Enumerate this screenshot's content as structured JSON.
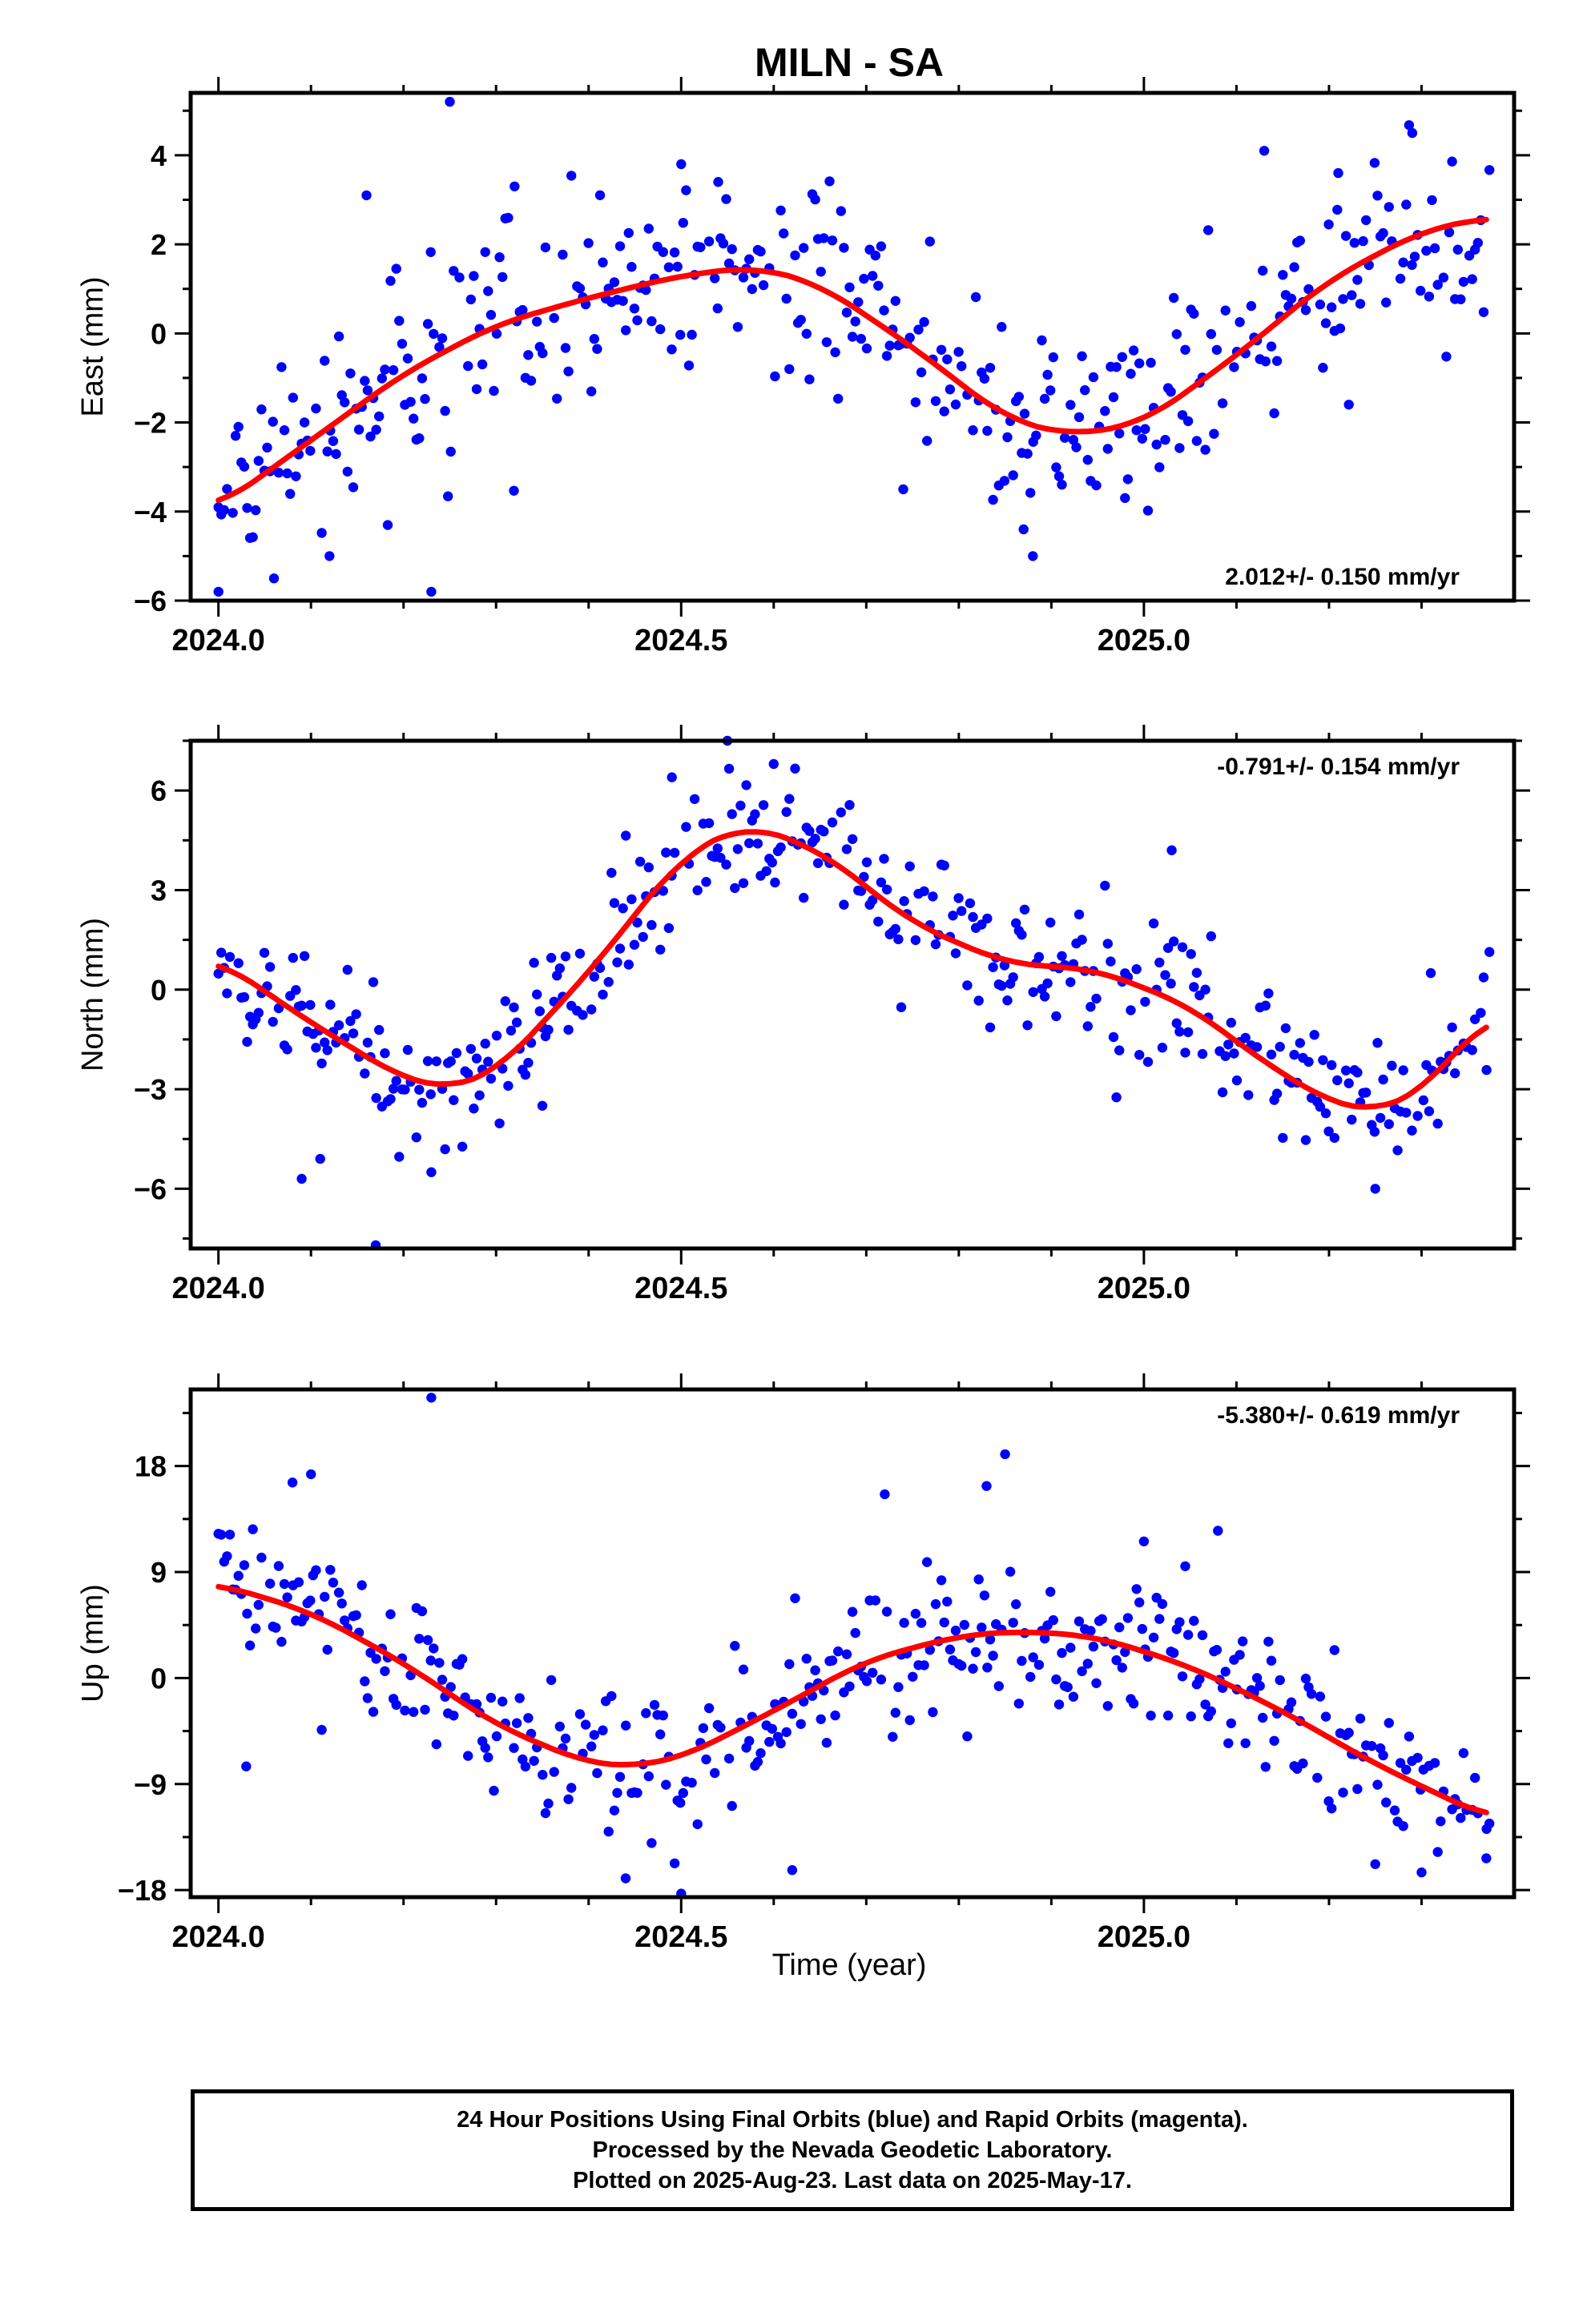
{
  "title": "MILN - SA",
  "xlabel": "Time (year)",
  "footer": {
    "line1": "24 Hour Positions Using Final Orbits (blue) and Rapid Orbits (magenta).",
    "line2": "Processed by the Nevada Geodetic Laboratory.",
    "line3": "Plotted on 2025-Aug-23. Last data on 2025-May-17."
  },
  "colors": {
    "points": "#0000ff",
    "fit": "#ff0000",
    "frame": "#000000"
  },
  "chart_data": [
    {
      "type": "scatter",
      "name": "east",
      "ylabel": "East (mm)",
      "rate_label": "2.012+/- 0.150 mm/yr",
      "rate_position": "bottom-right",
      "xlim": [
        2023.97,
        2025.4
      ],
      "ylim": [
        -6,
        5.4
      ],
      "x_ticks": [
        2024.0,
        2024.5,
        2025.0
      ],
      "x_tick_labels": [
        "2024.0",
        "2024.5",
        "2025.0"
      ],
      "y_ticks": [
        -6,
        -4,
        -2,
        0,
        2,
        4
      ],
      "y_tick_labels": [
        "−6",
        "−4",
        "−2",
        "0",
        "2",
        "4"
      ],
      "grid": false,
      "fit": {
        "x": [
          2024.0,
          2024.1,
          2024.2,
          2024.3,
          2024.4,
          2024.5,
          2024.58,
          2024.65,
          2024.75,
          2024.85,
          2024.92,
          2025.0,
          2025.1,
          2025.2,
          2025.3,
          2025.37
        ],
        "y": [
          -3.9,
          -2.4,
          -0.9,
          0.2,
          0.8,
          1.3,
          1.5,
          1.1,
          -0.3,
          -1.9,
          -2.3,
          -2.0,
          -0.5,
          1.2,
          2.3,
          2.6
        ]
      },
      "sigma": 1.1,
      "outliers": [
        {
          "x": 2024.25,
          "y": 5.2
        },
        {
          "x": 2024.23,
          "y": -5.8
        },
        {
          "x": 2024.0,
          "y": -5.8
        },
        {
          "x": 2024.06,
          "y": -5.5
        },
        {
          "x": 2024.88,
          "y": -5.0
        },
        {
          "x": 2024.87,
          "y": -4.4
        },
        {
          "x": 2025.29,
          "y": 4.5
        },
        {
          "x": 2025.13,
          "y": 4.1
        },
        {
          "x": 2024.16,
          "y": 3.1
        },
        {
          "x": 2024.32,
          "y": 3.3
        },
        {
          "x": 2024.5,
          "y": 3.8
        },
        {
          "x": 2024.54,
          "y": 3.4
        },
        {
          "x": 2025.21,
          "y": 3.6
        },
        {
          "x": 2024.12,
          "y": -5.0
        },
        {
          "x": 2024.74,
          "y": -3.5
        }
      ]
    },
    {
      "type": "scatter",
      "name": "north",
      "ylabel": "North (mm)",
      "rate_label": "-0.791+/- 0.154 mm/yr",
      "rate_position": "top-right",
      "xlim": [
        2023.97,
        2025.4
      ],
      "ylim": [
        -7.8,
        7.5
      ],
      "x_ticks": [
        2024.0,
        2024.5,
        2025.0
      ],
      "x_tick_labels": [
        "2024.0",
        "2024.5",
        "2025.0"
      ],
      "y_ticks": [
        -6,
        -3,
        0,
        3,
        6
      ],
      "y_tick_labels": [
        "−6",
        "−3",
        "0",
        "3",
        "6"
      ],
      "grid": false,
      "fit": {
        "x": [
          2024.0,
          2024.1,
          2024.2,
          2024.25,
          2024.3,
          2024.4,
          2024.5,
          2024.57,
          2024.65,
          2024.75,
          2024.85,
          2024.95,
          2025.05,
          2025.12,
          2025.2,
          2025.25,
          2025.3,
          2025.37
        ],
        "y": [
          0.9,
          -1.0,
          -2.7,
          -3.0,
          -2.5,
          0.5,
          4.0,
          5.0,
          4.2,
          2.0,
          0.8,
          0.6,
          -0.5,
          -2.0,
          -3.4,
          -3.7,
          -3.1,
          -0.8
        ]
      },
      "sigma": 1.1,
      "outliers": [
        {
          "x": 2024.55,
          "y": 7.5
        },
        {
          "x": 2024.17,
          "y": -7.7
        },
        {
          "x": 2024.11,
          "y": -5.1
        },
        {
          "x": 2024.09,
          "y": -5.7
        },
        {
          "x": 2024.23,
          "y": -5.5
        },
        {
          "x": 2024.6,
          "y": 6.8
        },
        {
          "x": 2024.49,
          "y": 6.4
        },
        {
          "x": 2025.03,
          "y": 4.2
        },
        {
          "x": 2025.25,
          "y": -6.0
        },
        {
          "x": 2025.31,
          "y": 0.5
        },
        {
          "x": 2024.35,
          "y": -3.5
        }
      ]
    },
    {
      "type": "scatter",
      "name": "up",
      "ylabel": "Up (mm)",
      "rate_label": "-5.380+/- 0.619 mm/yr",
      "rate_position": "top-right",
      "xlim": [
        2023.97,
        2025.4
      ],
      "ylim": [
        -18.6,
        24.5
      ],
      "x_ticks": [
        2024.0,
        2024.5,
        2025.0
      ],
      "x_tick_labels": [
        "2024.0",
        "2024.5",
        "2025.0"
      ],
      "y_ticks": [
        -18,
        -9,
        0,
        9,
        18
      ],
      "y_tick_labels": [
        "−18",
        "−9",
        "0",
        "9",
        "18"
      ],
      "grid": false,
      "fit": {
        "x": [
          2024.0,
          2024.1,
          2024.2,
          2024.3,
          2024.4,
          2024.45,
          2024.5,
          2024.6,
          2024.7,
          2024.8,
          2024.87,
          2024.95,
          2025.05,
          2025.15,
          2025.25,
          2025.37
        ],
        "y": [
          8.0,
          5.6,
          1.3,
          -4.0,
          -7.3,
          -7.5,
          -6.8,
          -2.8,
          1.5,
          3.6,
          4.0,
          3.5,
          1.0,
          -2.8,
          -7.3,
          -11.8
        ]
      },
      "sigma": 3.3,
      "outliers": [
        {
          "x": 2024.23,
          "y": 23.8
        },
        {
          "x": 2024.85,
          "y": 19.0
        },
        {
          "x": 2024.1,
          "y": 17.3
        },
        {
          "x": 2024.08,
          "y": 16.6
        },
        {
          "x": 2024.72,
          "y": 15.6
        },
        {
          "x": 2024.83,
          "y": 16.3
        },
        {
          "x": 2024.5,
          "y": -18.3
        },
        {
          "x": 2024.44,
          "y": -17.0
        },
        {
          "x": 2024.62,
          "y": -16.3
        },
        {
          "x": 2025.3,
          "y": -16.5
        },
        {
          "x": 2025.25,
          "y": -15.8
        },
        {
          "x": 2024.03,
          "y": -7.5
        },
        {
          "x": 2025.08,
          "y": 12.5
        },
        {
          "x": 2025.0,
          "y": 11.6
        },
        {
          "x": 2025.37,
          "y": -15.3
        }
      ]
    }
  ]
}
